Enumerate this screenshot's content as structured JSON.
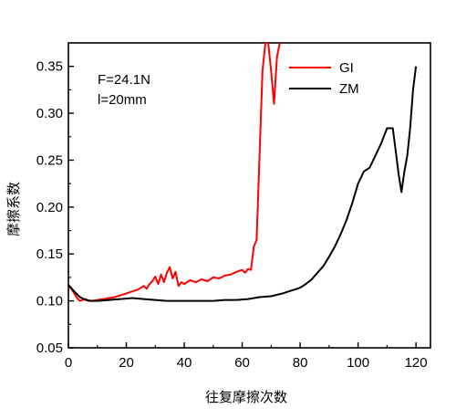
{
  "chart_data": {
    "type": "line",
    "title": "",
    "xlabel": "往复摩擦次数",
    "ylabel": "摩擦系数",
    "xlim": [
      0,
      125
    ],
    "ylim": [
      0.05,
      0.375
    ],
    "xticks": [
      "0",
      "20",
      "40",
      "60",
      "80",
      "100",
      "120"
    ],
    "yticks": [
      "0.05",
      "0.10",
      "0.15",
      "0.20",
      "0.25",
      "0.30",
      "0.35"
    ],
    "annotations": [
      "F=24.1N",
      "l=20mm"
    ],
    "legend_position": "top-right",
    "grid": false,
    "series": [
      {
        "name": "GI",
        "color": "#ff0000",
        "x": [
          0,
          1,
          2,
          3,
          4,
          5,
          6,
          7,
          8,
          10,
          12,
          14,
          16,
          18,
          20,
          22,
          24,
          26,
          27,
          28,
          29,
          30,
          31,
          32,
          33,
          34,
          35,
          36,
          37,
          38,
          39,
          40,
          42,
          44,
          46,
          48,
          50,
          52,
          54,
          56,
          58,
          60,
          61,
          62,
          63,
          64,
          65,
          66,
          67,
          68,
          69,
          70,
          71,
          72,
          73
        ],
        "y": [
          0.116,
          0.113,
          0.108,
          0.103,
          0.1,
          0.101,
          0.102,
          0.1,
          0.1,
          0.101,
          0.102,
          0.103,
          0.104,
          0.106,
          0.108,
          0.11,
          0.112,
          0.116,
          0.113,
          0.118,
          0.121,
          0.126,
          0.118,
          0.128,
          0.12,
          0.13,
          0.136,
          0.124,
          0.131,
          0.116,
          0.12,
          0.118,
          0.122,
          0.12,
          0.123,
          0.121,
          0.125,
          0.124,
          0.127,
          0.128,
          0.131,
          0.133,
          0.13,
          0.134,
          0.133,
          0.158,
          0.165,
          0.255,
          0.345,
          0.375,
          0.375,
          0.345,
          0.31,
          0.36,
          0.375
        ]
      },
      {
        "name": "ZM",
        "color": "#000000",
        "x": [
          0,
          2,
          4,
          6,
          8,
          10,
          14,
          18,
          22,
          26,
          30,
          34,
          38,
          42,
          46,
          50,
          54,
          58,
          62,
          66,
          70,
          74,
          76,
          78,
          80,
          82,
          84,
          86,
          88,
          90,
          92,
          94,
          96,
          98,
          100,
          102,
          104,
          106,
          108,
          110,
          112,
          113,
          114,
          115,
          116,
          117,
          118,
          119,
          120
        ],
        "y": [
          0.117,
          0.11,
          0.104,
          0.101,
          0.1,
          0.1,
          0.101,
          0.102,
          0.103,
          0.102,
          0.101,
          0.1,
          0.1,
          0.1,
          0.1,
          0.1,
          0.101,
          0.101,
          0.102,
          0.104,
          0.105,
          0.108,
          0.11,
          0.112,
          0.114,
          0.118,
          0.123,
          0.13,
          0.137,
          0.147,
          0.158,
          0.171,
          0.186,
          0.204,
          0.225,
          0.238,
          0.242,
          0.255,
          0.268,
          0.284,
          0.284,
          0.26,
          0.235,
          0.216,
          0.238,
          0.255,
          0.285,
          0.325,
          0.35
        ]
      }
    ]
  }
}
